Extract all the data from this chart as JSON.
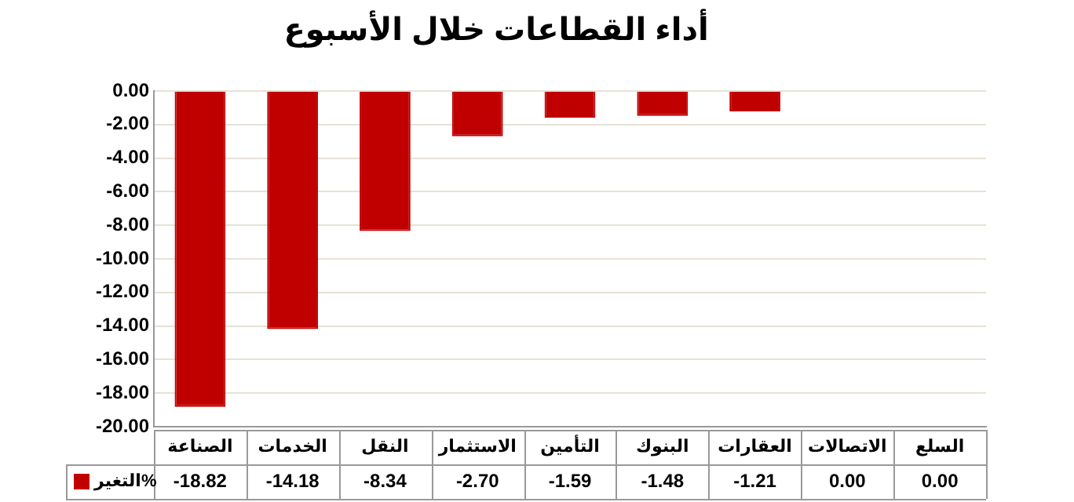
{
  "chart_data": {
    "type": "bar",
    "title": "أداء القطاعات خلال الأسبوع",
    "categories": [
      "الصناعة",
      "الخدمات",
      "النقل",
      "الاستثمار",
      "التأمين",
      "البنوك",
      "العقارات",
      "الاتصالات",
      "السلع"
    ],
    "series": [
      {
        "name": "التغير%",
        "color": "#c00000",
        "colors": [
          "#c00000",
          "#c00000",
          "#c00000",
          "#c00000",
          "#c00000",
          "#c00000",
          "#c00000",
          "#1f8fc0",
          "#1f8fc0"
        ],
        "values": [
          -18.82,
          -14.18,
          -8.34,
          -2.7,
          -1.59,
          -1.48,
          -1.21,
          0,
          0
        ],
        "value_labels": [
          "-18.82",
          "-14.18",
          "-8.34",
          "-2.70",
          "-1.59",
          "-1.48",
          "-1.21",
          "0.00",
          "0.00"
        ]
      }
    ],
    "ylim": [
      -20,
      0
    ],
    "yticks": [
      {
        "value": -20,
        "label": "-20.00"
      },
      {
        "value": -18,
        "label": "-18.00"
      },
      {
        "value": -16,
        "label": "-16.00"
      },
      {
        "value": -14,
        "label": "-14.00"
      },
      {
        "value": -12,
        "label": "-12.00"
      },
      {
        "value": -10,
        "label": "-10.00"
      },
      {
        "value": -8,
        "label": "-8.00"
      },
      {
        "value": -6,
        "label": "-6.00"
      },
      {
        "value": -4,
        "label": "-4.00"
      },
      {
        "value": -2,
        "label": "-2.00"
      },
      {
        "value": 0,
        "label": "0.00"
      }
    ],
    "grid": "y",
    "legend": "bottom left"
  }
}
